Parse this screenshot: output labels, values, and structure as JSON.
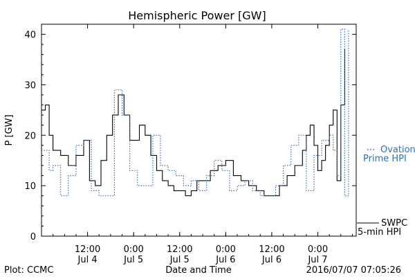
{
  "chart_data": {
    "type": "line",
    "title": "Hemispheric Power [GW]",
    "ylabel": "P [GW]",
    "xlabel": "Date and Time",
    "ylim": [
      0,
      42
    ],
    "xlim": [
      "2016-07-04T00:00",
      "2016-07-07T10:00"
    ],
    "y_ticks": [
      0,
      10,
      20,
      30,
      40
    ],
    "x_ticks": [
      {
        "t": "2016-07-04T12:00",
        "time": "12:00",
        "date": "Jul 4"
      },
      {
        "t": "2016-07-05T00:00",
        "time": "0:00",
        "date": "Jul 5"
      },
      {
        "t": "2016-07-05T12:00",
        "time": "12:00",
        "date": "Jul 5"
      },
      {
        "t": "2016-07-06T00:00",
        "time": "0:00",
        "date": "Jul 6"
      },
      {
        "t": "2016-07-06T12:00",
        "time": "12:00",
        "date": "Jul 6"
      },
      {
        "t": "2016-07-07T00:00",
        "time": "0:00",
        "date": "Jul 7"
      }
    ],
    "grid": false,
    "legend_position": "right",
    "series": [
      {
        "name": "SWPC 5-min HPI",
        "style": "solid",
        "color": "#000000",
        "x": [
          "2016-07-04T00:00",
          "2016-07-04T01:00",
          "2016-07-04T02:00",
          "2016-07-04T03:00",
          "2016-07-04T05:00",
          "2016-07-04T07:00",
          "2016-07-04T09:00",
          "2016-07-04T11:00",
          "2016-07-04T12:30",
          "2016-07-04T14:00",
          "2016-07-04T15:30",
          "2016-07-04T17:00",
          "2016-07-04T18:30",
          "2016-07-04T20:00",
          "2016-07-04T21:30",
          "2016-07-04T23:00",
          "2016-07-05T00:00",
          "2016-07-05T01:30",
          "2016-07-05T03:00",
          "2016-07-05T04:30",
          "2016-07-05T06:00",
          "2016-07-05T07:30",
          "2016-07-05T09:00",
          "2016-07-05T10:30",
          "2016-07-05T12:00",
          "2016-07-05T13:30",
          "2016-07-05T15:00",
          "2016-07-05T16:30",
          "2016-07-05T18:00",
          "2016-07-05T20:00",
          "2016-07-05T22:00",
          "2016-07-06T00:00",
          "2016-07-06T02:00",
          "2016-07-06T04:00",
          "2016-07-06T06:00",
          "2016-07-06T08:00",
          "2016-07-06T10:00",
          "2016-07-06T12:00",
          "2016-07-06T14:00",
          "2016-07-06T16:00",
          "2016-07-06T18:00",
          "2016-07-06T20:00",
          "2016-07-06T21:00",
          "2016-07-06T22:00",
          "2016-07-06T23:00",
          "2016-07-07T00:00",
          "2016-07-07T01:00",
          "2016-07-07T02:00",
          "2016-07-07T03:00",
          "2016-07-07T04:00",
          "2016-07-07T05:00",
          "2016-07-07T06:00",
          "2016-07-07T07:00"
        ],
        "values": [
          25,
          26,
          20,
          17,
          16,
          14,
          16,
          19,
          11,
          10,
          15,
          20,
          24,
          28,
          24,
          19,
          19,
          22,
          20,
          16,
          13,
          11,
          10,
          9,
          9,
          8,
          9,
          11,
          11,
          13,
          14,
          15,
          12,
          11,
          10,
          9,
          8,
          8,
          10,
          12,
          14,
          17,
          20,
          22,
          18,
          13,
          15,
          18,
          22,
          25,
          11,
          26,
          37
        ]
      },
      {
        "name": "Ovation Prime HPI",
        "style": "dotted",
        "color": "#2f6fb8",
        "x": [
          "2016-07-04T00:00",
          "2016-07-04T01:00",
          "2016-07-04T02:00",
          "2016-07-04T03:00",
          "2016-07-04T05:00",
          "2016-07-04T07:00",
          "2016-07-04T09:00",
          "2016-07-04T11:00",
          "2016-07-04T13:00",
          "2016-07-04T15:00",
          "2016-07-04T17:00",
          "2016-07-04T19:00",
          "2016-07-04T21:00",
          "2016-07-04T23:00",
          "2016-07-05T01:00",
          "2016-07-05T03:00",
          "2016-07-05T05:00",
          "2016-07-05T07:00",
          "2016-07-05T09:00",
          "2016-07-05T11:00",
          "2016-07-05T13:00",
          "2016-07-05T15:00",
          "2016-07-05T17:00",
          "2016-07-05T19:00",
          "2016-07-05T21:00",
          "2016-07-05T23:00",
          "2016-07-06T01:00",
          "2016-07-06T03:00",
          "2016-07-06T05:00",
          "2016-07-06T07:00",
          "2016-07-06T09:00",
          "2016-07-06T11:00",
          "2016-07-06T13:00",
          "2016-07-06T15:00",
          "2016-07-06T17:00",
          "2016-07-06T19:00",
          "2016-07-06T21:00",
          "2016-07-06T23:00",
          "2016-07-07T01:00",
          "2016-07-07T03:00",
          "2016-07-07T04:00",
          "2016-07-07T05:00",
          "2016-07-07T06:00",
          "2016-07-07T07:00",
          "2016-07-07T08:00"
        ],
        "values": [
          17,
          17,
          13,
          14,
          8,
          12,
          18,
          19,
          9,
          8,
          8,
          29,
          24,
          13,
          10,
          10,
          20,
          14,
          13,
          12,
          10,
          11,
          9,
          12,
          15,
          13,
          9,
          10,
          11,
          9,
          8,
          8,
          10,
          14,
          18,
          20,
          9,
          16,
          19,
          20,
          17,
          12,
          41,
          8,
          41
        ]
      }
    ],
    "legend": {
      "ovation_line1": "Ovation",
      "ovation_line2": "Prime HPI",
      "swpc_line1": "SWPC",
      "swpc_line2": "5-min HPI"
    },
    "footer": {
      "left": "Plot: CCMC",
      "right": "2016/07/07 07:05:26"
    }
  }
}
